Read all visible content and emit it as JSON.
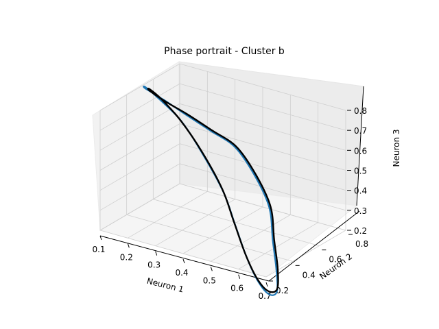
{
  "chart_data": {
    "type": "line",
    "projection": "3d",
    "title": "Phase portrait - Cluster b",
    "xlabel": "Neuron 1",
    "ylabel": "Neuron 2",
    "zlabel": "Neuron 3",
    "xticks": [
      "0.1",
      "0.2",
      "0.3",
      "0.4",
      "0.5",
      "0.6",
      "0.7"
    ],
    "yticks": [
      "0.2",
      "0.4",
      "0.6",
      "0.8"
    ],
    "zticks": [
      "0.2",
      "0.3",
      "0.4",
      "0.5",
      "0.6",
      "0.7",
      "0.8"
    ],
    "xlim": [
      0.1,
      0.7
    ],
    "ylim": [
      0.2,
      0.8
    ],
    "zlim": [
      0.2,
      0.8
    ],
    "grid": true,
    "series": [
      {
        "color": "#1f77b4",
        "points": [
          [
            0.12,
            0.5,
            0.8
          ],
          [
            0.13,
            0.62,
            0.7
          ],
          [
            0.16,
            0.72,
            0.6
          ],
          [
            0.22,
            0.78,
            0.52
          ],
          [
            0.3,
            0.8,
            0.46
          ],
          [
            0.4,
            0.74,
            0.38
          ],
          [
            0.5,
            0.64,
            0.3
          ],
          [
            0.58,
            0.5,
            0.22
          ],
          [
            0.66,
            0.36,
            0.16
          ],
          [
            0.72,
            0.24,
            0.12
          ],
          [
            0.73,
            0.16,
            0.14
          ],
          [
            0.7,
            0.14,
            0.2
          ],
          [
            0.64,
            0.18,
            0.28
          ],
          [
            0.56,
            0.26,
            0.38
          ],
          [
            0.48,
            0.34,
            0.48
          ],
          [
            0.38,
            0.4,
            0.6
          ],
          [
            0.28,
            0.44,
            0.72
          ],
          [
            0.2,
            0.44,
            0.8
          ],
          [
            0.14,
            0.46,
            0.83
          ],
          [
            0.12,
            0.5,
            0.8
          ]
        ]
      },
      {
        "color": "#000000",
        "points": [
          [
            0.13,
            0.51,
            0.79
          ],
          [
            0.14,
            0.61,
            0.7
          ],
          [
            0.17,
            0.71,
            0.61
          ],
          [
            0.23,
            0.77,
            0.53
          ],
          [
            0.31,
            0.79,
            0.47
          ],
          [
            0.41,
            0.73,
            0.39
          ],
          [
            0.51,
            0.63,
            0.31
          ],
          [
            0.59,
            0.49,
            0.23
          ],
          [
            0.67,
            0.35,
            0.17
          ],
          [
            0.72,
            0.24,
            0.13
          ],
          [
            0.72,
            0.17,
            0.15
          ],
          [
            0.69,
            0.15,
            0.21
          ],
          [
            0.63,
            0.19,
            0.29
          ],
          [
            0.55,
            0.27,
            0.39
          ],
          [
            0.47,
            0.35,
            0.49
          ],
          [
            0.37,
            0.41,
            0.61
          ],
          [
            0.27,
            0.45,
            0.72
          ],
          [
            0.2,
            0.45,
            0.8
          ],
          [
            0.15,
            0.47,
            0.82
          ],
          [
            0.13,
            0.51,
            0.79
          ]
        ]
      }
    ]
  }
}
